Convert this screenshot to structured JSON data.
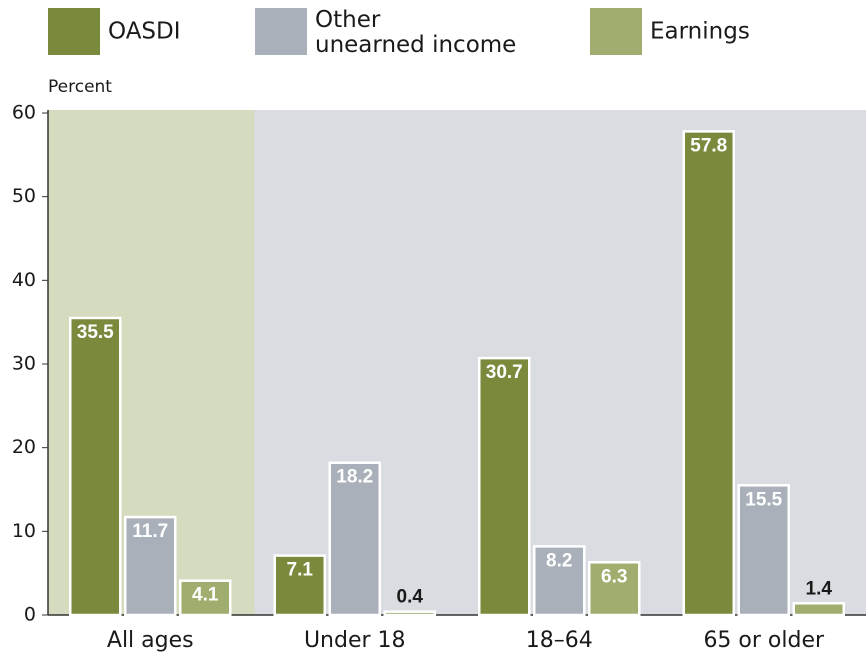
{
  "chart_data": {
    "type": "bar",
    "y_axis_label": "Percent",
    "categories": [
      "All ages",
      "Under 18",
      "18–64",
      "65 or older"
    ],
    "series": [
      {
        "name": "OASDI",
        "color": "#7a8a3c",
        "values": [
          35.5,
          7.1,
          30.7,
          57.8
        ]
      },
      {
        "name": "Other unearned income",
        "color": "#a9b0b9",
        "values": [
          11.7,
          18.2,
          8.2,
          15.5
        ]
      },
      {
        "name": "Earnings",
        "color": "#9fae6e",
        "values": [
          4.1,
          0.4,
          6.3,
          1.4
        ]
      }
    ],
    "ylim": [
      0,
      60
    ],
    "yticks": [
      0,
      10,
      20,
      30,
      40,
      50,
      60
    ],
    "legend": "top"
  }
}
